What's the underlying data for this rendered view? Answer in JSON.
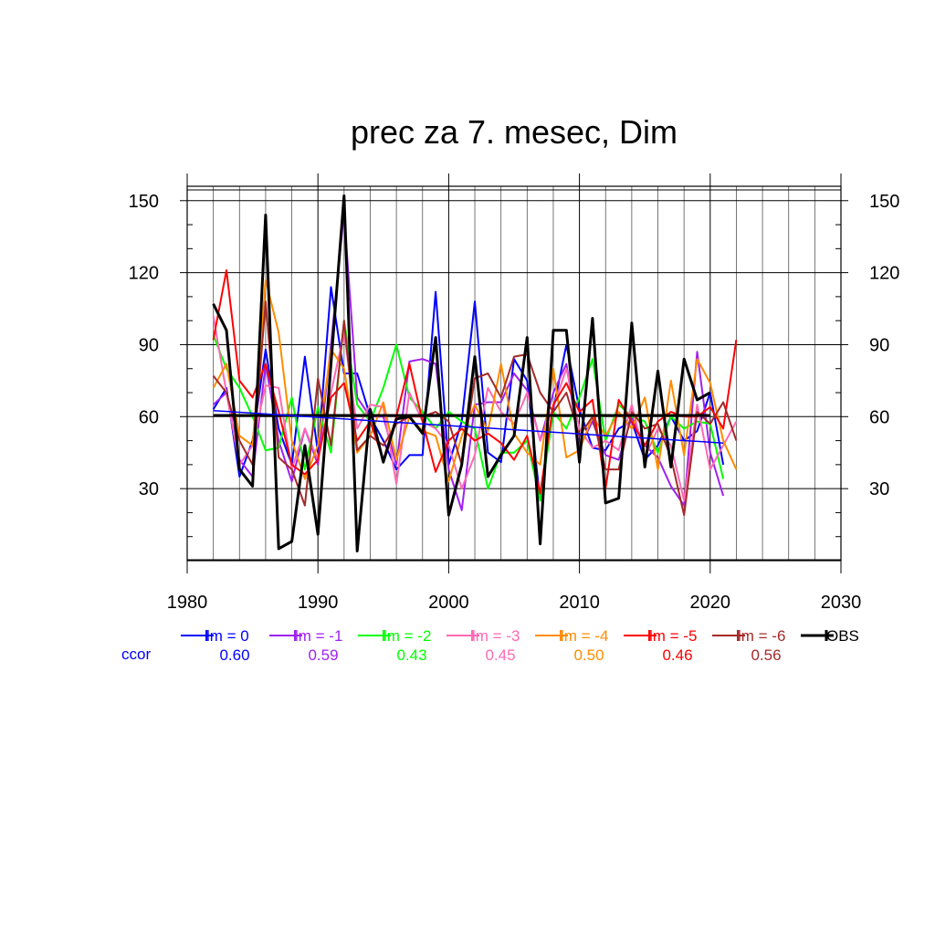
{
  "chart_data": {
    "type": "line",
    "title": "prec za 7. mesec, Dim",
    "xlabel": "",
    "ylabel": "",
    "xlim": [
      1980,
      2030
    ],
    "ylim": [
      0,
      156
    ],
    "x_ticks": [
      1980,
      1990,
      2000,
      2010,
      2020,
      2030
    ],
    "y_ticks": [
      30,
      60,
      90,
      120,
      150
    ],
    "grid": true,
    "legend_placement": "bottom",
    "ccor_label": "ccor",
    "series": [
      {
        "name": "lm = 0",
        "color": "#0000ff",
        "ccor": "0.60",
        "x": [
          1982,
          1983,
          1984,
          1985,
          1986,
          1987,
          1988,
          1989,
          1990,
          1991,
          1992,
          1993,
          1994,
          1995,
          1996,
          1997,
          1998,
          1999,
          2000,
          2001,
          2002,
          2003,
          2004,
          2005,
          2006,
          2007,
          2008,
          2009,
          2010,
          2011,
          2012,
          2013,
          2014,
          2015,
          2016,
          2017,
          2018,
          2019,
          2020,
          2021
        ],
        "values": [
          63,
          72,
          35,
          50,
          88,
          55,
          40,
          85,
          45,
          114,
          78,
          78,
          60,
          50,
          38,
          44,
          44,
          112,
          40,
          58,
          108,
          45,
          41,
          84,
          75,
          25,
          63,
          90,
          63,
          47,
          46,
          55,
          58,
          42,
          48,
          60,
          50,
          54,
          70,
          40
        ]
      },
      {
        "name": "lm = -1",
        "color": "#a020f0",
        "ccor": "0.59",
        "x": [
          1982,
          1983,
          1984,
          1985,
          1986,
          1987,
          1988,
          1989,
          1990,
          1991,
          1992,
          1993,
          1994,
          1995,
          1996,
          1997,
          1998,
          1999,
          2000,
          2001,
          2002,
          2003,
          2004,
          2005,
          2006,
          2007,
          2008,
          2009,
          2010,
          2011,
          2012,
          2013,
          2014,
          2015,
          2016,
          2017,
          2018,
          2019,
          2020,
          2021
        ],
        "values": [
          65,
          70,
          42,
          35,
          82,
          50,
          33,
          55,
          40,
          90,
          145,
          68,
          60,
          60,
          40,
          83,
          84,
          82,
          38,
          21,
          65,
          66,
          66,
          78,
          71,
          50,
          70,
          82,
          47,
          58,
          44,
          42,
          60,
          48,
          43,
          31,
          23,
          87,
          45,
          27
        ]
      },
      {
        "name": "lm = -2",
        "color": "#00ff00",
        "ccor": "0.43",
        "x": [
          1982,
          1983,
          1984,
          1985,
          1986,
          1987,
          1988,
          1989,
          1990,
          1991,
          1992,
          1993,
          1994,
          1995,
          1996,
          1997,
          1998,
          1999,
          2000,
          2001,
          2002,
          2003,
          2004,
          2005,
          2006,
          2007,
          2008,
          2009,
          2010,
          2011,
          2012,
          2013,
          2014,
          2015,
          2016,
          2017,
          2018,
          2019,
          2020,
          2021
        ],
        "values": [
          94,
          80,
          72,
          60,
          46,
          47,
          68,
          38,
          64,
          45,
          100,
          65,
          58,
          72,
          90,
          68,
          62,
          55,
          62,
          58,
          55,
          30,
          45,
          45,
          50,
          25,
          62,
          55,
          68,
          84,
          50,
          65,
          60,
          58,
          45,
          60,
          55,
          58,
          57,
          34
        ]
      },
      {
        "name": "lm = -3",
        "color": "#ff69b4",
        "ccor": "0.45",
        "x": [
          1982,
          1983,
          1984,
          1985,
          1986,
          1987,
          1988,
          1989,
          1990,
          1991,
          1992,
          1993,
          1994,
          1995,
          1996,
          1997,
          1998,
          1999,
          2000,
          2001,
          2002,
          2003,
          2004,
          2005,
          2006,
          2007,
          2008,
          2009,
          2010,
          2011,
          2012,
          2013,
          2014,
          2015,
          2016,
          2017,
          2018,
          2019,
          2020,
          2021,
          2022
        ],
        "values": [
          102,
          70,
          40,
          48,
          73,
          72,
          38,
          55,
          42,
          70,
          95,
          55,
          65,
          64,
          32,
          70,
          58,
          55,
          48,
          30,
          44,
          72,
          62,
          57,
          70,
          50,
          64,
          80,
          55,
          47,
          50,
          46,
          65,
          43,
          55,
          48,
          25,
          65,
          38,
          48,
          58
        ]
      },
      {
        "name": "lm = -4",
        "color": "#ff8c00",
        "ccor": "0.50",
        "x": [
          1982,
          1983,
          1984,
          1985,
          1986,
          1987,
          1988,
          1989,
          1990,
          1991,
          1992,
          1993,
          1994,
          1995,
          1996,
          1997,
          1998,
          1999,
          2000,
          2001,
          2002,
          2003,
          2004,
          2005,
          2006,
          2007,
          2008,
          2009,
          2010,
          2011,
          2012,
          2013,
          2014,
          2015,
          2016,
          2017,
          2018,
          2019,
          2020,
          2021,
          2022
        ],
        "values": [
          72,
          82,
          52,
          48,
          117,
          95,
          50,
          34,
          48,
          88,
          80,
          45,
          52,
          66,
          42,
          60,
          54,
          52,
          33,
          52,
          65,
          54,
          82,
          53,
          45,
          40,
          80,
          43,
          46,
          60,
          52,
          62,
          55,
          68,
          38,
          75,
          44,
          84,
          74,
          50,
          38
        ]
      },
      {
        "name": "lm = -5",
        "color": "#ff0000",
        "ccor": "0.46",
        "x": [
          1982,
          1983,
          1984,
          1985,
          1986,
          1987,
          1988,
          1989,
          1990,
          1991,
          1992,
          1993,
          1994,
          1995,
          1996,
          1997,
          1998,
          1999,
          2000,
          2001,
          2002,
          2003,
          2004,
          2005,
          2006,
          2007,
          2008,
          2009,
          2010,
          2011,
          2012,
          2013,
          2014,
          2015,
          2016,
          2017,
          2018,
          2019,
          2020,
          2021,
          2022
        ],
        "values": [
          92,
          121,
          75,
          68,
          82,
          62,
          40,
          36,
          42,
          68,
          74,
          50,
          58,
          42,
          60,
          82,
          58,
          37,
          50,
          55,
          50,
          53,
          49,
          42,
          52,
          28,
          65,
          74,
          62,
          67,
          30,
          67,
          58,
          48,
          58,
          62,
          60,
          60,
          64,
          55,
          92
        ]
      },
      {
        "name": "lm = -6",
        "color": "#a52a2a",
        "ccor": "0.56",
        "x": [
          1982,
          1983,
          1984,
          1985,
          1986,
          1987,
          1988,
          1989,
          1990,
          1991,
          1992,
          1993,
          1994,
          1995,
          1996,
          1997,
          1998,
          1999,
          2000,
          2001,
          2002,
          2003,
          2004,
          2005,
          2006,
          2007,
          2008,
          2009,
          2010,
          2011,
          2012,
          2013,
          2014,
          2015,
          2016,
          2017,
          2018,
          2019,
          2020,
          2021,
          2022
        ],
        "values": [
          77,
          70,
          50,
          40,
          108,
          43,
          38,
          23,
          76,
          48,
          100,
          46,
          52,
          48,
          57,
          60,
          60,
          62,
          58,
          40,
          76,
          78,
          68,
          85,
          86,
          70,
          62,
          70,
          52,
          60,
          38,
          38,
          62,
          55,
          57,
          43,
          19,
          62,
          57,
          66,
          50
        ]
      },
      {
        "name": "OBS",
        "color": "#000000",
        "ccor": "",
        "x": [
          1982,
          1983,
          1984,
          1985,
          1986,
          1987,
          1988,
          1989,
          1990,
          1991,
          1992,
          1993,
          1994,
          1995,
          1996,
          1997,
          1998,
          1999,
          2000,
          2001,
          2002,
          2003,
          2004,
          2005,
          2006,
          2007,
          2008,
          2009,
          2010,
          2011,
          2012,
          2013,
          2014,
          2015,
          2016,
          2017,
          2018,
          2019,
          2020
        ],
        "values": [
          107,
          96,
          38,
          31,
          144,
          5,
          8,
          48,
          11,
          82,
          152,
          4,
          63,
          41,
          59,
          60,
          53,
          93,
          19,
          40,
          85,
          35,
          44,
          52,
          93,
          7,
          96,
          96,
          41,
          101,
          24,
          26,
          99,
          39,
          79,
          39,
          84,
          67,
          70
        ]
      }
    ],
    "reference_lines": [
      {
        "name": "obs-mean",
        "color": "#000000",
        "x": [
          1982,
          2020
        ],
        "values": [
          60.5,
          60.5
        ]
      },
      {
        "name": "trend-lm0",
        "color": "#0000ff",
        "x": [
          1982,
          2021
        ],
        "values": [
          62.5,
          49
        ]
      }
    ]
  }
}
